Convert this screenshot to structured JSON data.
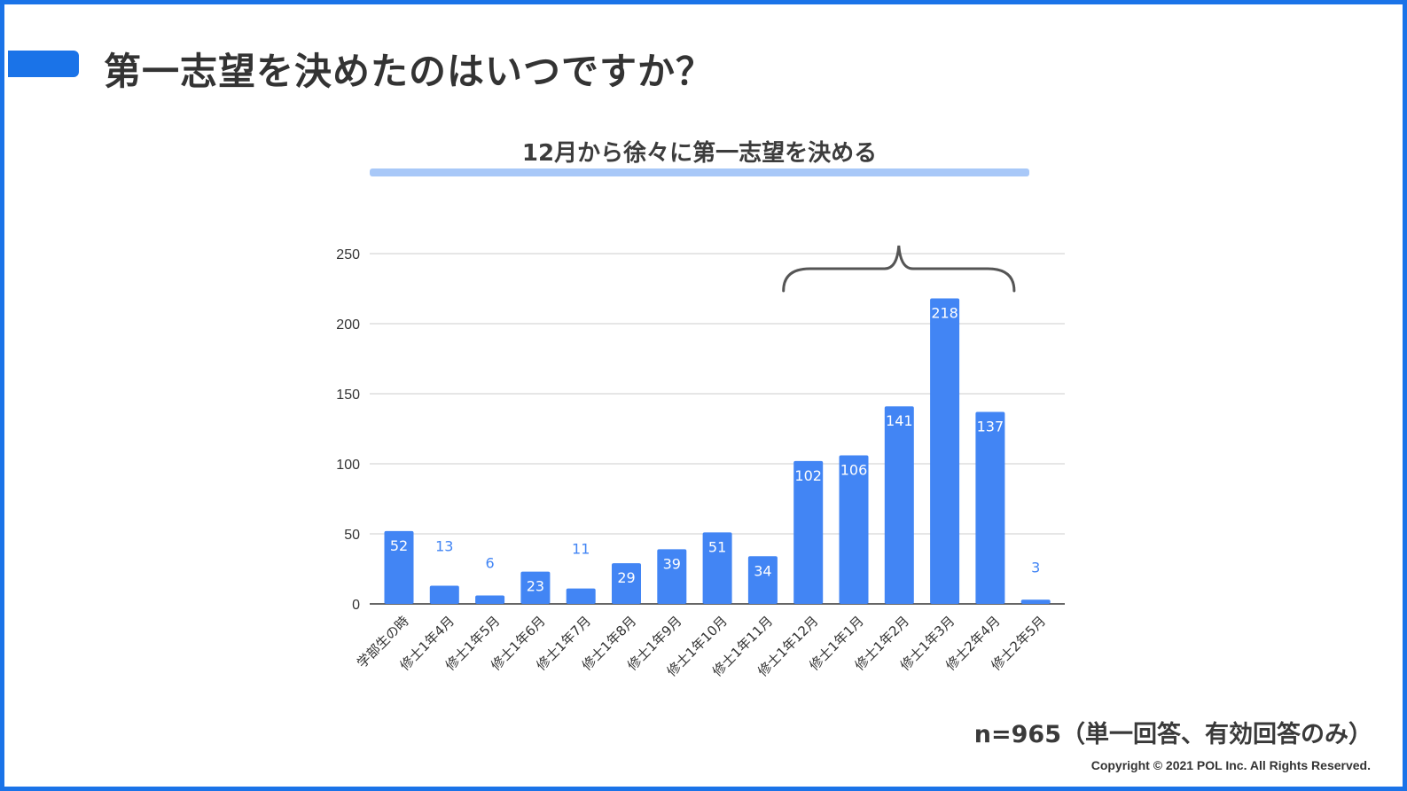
{
  "title": "第一志望を決めたのはいつですか？",
  "subtitle": "12月から徐々に第一志望を決める",
  "note": "n=965（単一回答、有効回答のみ）",
  "copyright": "Copyright © 2021 POL Inc. All Rights Reserved.",
  "colors": {
    "accent": "#1a73e8",
    "bar": "#4285f4",
    "underline": "#a8c8f8"
  },
  "chart_data": {
    "type": "bar",
    "title": "",
    "xlabel": "",
    "ylabel": "",
    "categories": [
      "学部生の時",
      "修士1年4月",
      "修士1年5月",
      "修士1年6月",
      "修士1年7月",
      "修士1年8月",
      "修士1年9月",
      "修士1年10月",
      "修士1年11月",
      "修士1年12月",
      "修士1年1月",
      "修士1年2月",
      "修士1年3月",
      "修士2年4月",
      "修士2年5月"
    ],
    "values": [
      52,
      13,
      6,
      23,
      11,
      29,
      39,
      51,
      34,
      102,
      106,
      141,
      218,
      137,
      3
    ],
    "ylim": [
      0,
      250
    ],
    "yticks": [
      "0",
      "50",
      "100",
      "150",
      "200",
      "250"
    ],
    "grid": true,
    "annotation": "curly brace spanning 修士1年12月 to 修士2年4月"
  }
}
